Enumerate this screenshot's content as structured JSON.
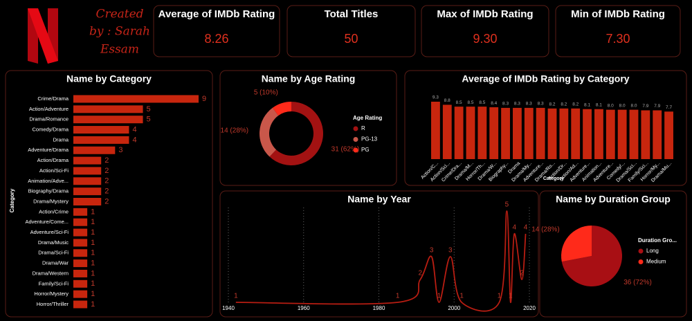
{
  "creator": [
    "Created",
    "by : Sarah",
    "Essam"
  ],
  "kpis": [
    {
      "label": "Average of IMDb Rating",
      "value": "8.26"
    },
    {
      "label": "Total Titles",
      "value": "50"
    },
    {
      "label": "Max of IMDb Rating",
      "value": "9.30"
    },
    {
      "label": "Min of IMDb Rating",
      "value": "7.30"
    }
  ],
  "chart_data": [
    {
      "type": "barh",
      "title": "Name by Category",
      "y_label": "Category",
      "categories": [
        "Crime/Drama",
        "Action/Adventure",
        "Drama/Romance",
        "Comedy/Drama",
        "Drama",
        "Adventure/Drama",
        "Action/Drama",
        "Action/Sci-Fi",
        "Animation/Adve...",
        "Biography/Drama",
        "Drama/Mystery",
        "Action/Crime",
        "Adventure/Come...",
        "Adventure/Sci-Fi",
        "Drama/Music",
        "Drama/Sci-Fi",
        "Drama/War",
        "Drama/Western",
        "Family/Sci-Fi",
        "Horror/Mystery",
        "Horror/Thriller"
      ],
      "values": [
        9,
        5,
        5,
        4,
        4,
        3,
        2,
        2,
        2,
        2,
        2,
        1,
        1,
        1,
        1,
        1,
        1,
        1,
        1,
        1,
        1
      ],
      "color": "#c8260e"
    },
    {
      "type": "donut",
      "title": "Name by Age Rating",
      "legend_title": "Age Rating",
      "categories": [
        "R",
        "PG-13",
        "PG"
      ],
      "values": [
        31,
        14,
        5
      ],
      "value_labels": [
        "31 (62%)",
        "14 (28%)",
        "5 (10%)"
      ],
      "colors": [
        "#a31212",
        "#c9574a",
        "#ff2a1a"
      ]
    },
    {
      "type": "bar",
      "title": "Average of IMDb Rating by Category",
      "x_label": "Category",
      "categories": [
        "Action/C...",
        "Action/Sci...",
        "Crime/Dra...",
        "Drama/M...",
        "Horror/Th...",
        "Drama/W...",
        "Biography...",
        "Drama",
        "Drama/My...",
        "Adventure...",
        "Drama/Ro...",
        "Action/Dr...",
        "Action/Ad...",
        "Adventure...",
        "Animation...",
        "Adventure...",
        "Comedy/...",
        "Drama/Sci...",
        "Family/Sci...",
        "Horror/My...",
        "Drama/Mu..."
      ],
      "values": [
        9.3,
        8.8,
        8.5,
        8.5,
        8.5,
        8.4,
        8.3,
        8.3,
        8.3,
        8.3,
        8.2,
        8.2,
        8.2,
        8.1,
        8.1,
        8.0,
        8.0,
        8.0,
        7.9,
        7.9,
        7.7
      ],
      "value_labels": [
        "9.3",
        "8.8",
        "8.5",
        "8.5",
        "8.5",
        "8.4",
        "8.3",
        "8.3",
        "8.3",
        "8.3",
        "8.2",
        "8.2",
        "8.2",
        "8.1",
        "8.1",
        "8.0",
        "8.0",
        "8.0",
        "7.9",
        "7.9",
        "7.7"
      ],
      "color": "#c8260e"
    },
    {
      "type": "line",
      "title": "Name by Year",
      "x": [
        1942,
        1985,
        1991,
        1994,
        1996,
        1999,
        2002,
        2012,
        2014,
        2015,
        2016,
        2018,
        2019
      ],
      "values": [
        1,
        1,
        2,
        3,
        1,
        3,
        1,
        1,
        5,
        1,
        4,
        2,
        4
      ],
      "xlim": [
        1939,
        2021
      ],
      "xticks": [
        1940,
        1960,
        1980,
        2000,
        2020
      ],
      "ylim": [
        1,
        5
      ],
      "grid": true,
      "color": "#b81d12"
    },
    {
      "type": "pie",
      "title": "Name by Duration Group",
      "legend_title": "Duration Gro...",
      "categories": [
        "Long",
        "Medium"
      ],
      "values": [
        36,
        14
      ],
      "value_labels": [
        "36 (72%)",
        "14 (28%)"
      ],
      "colors": [
        "#a80f14",
        "#ff2a1a"
      ]
    }
  ]
}
